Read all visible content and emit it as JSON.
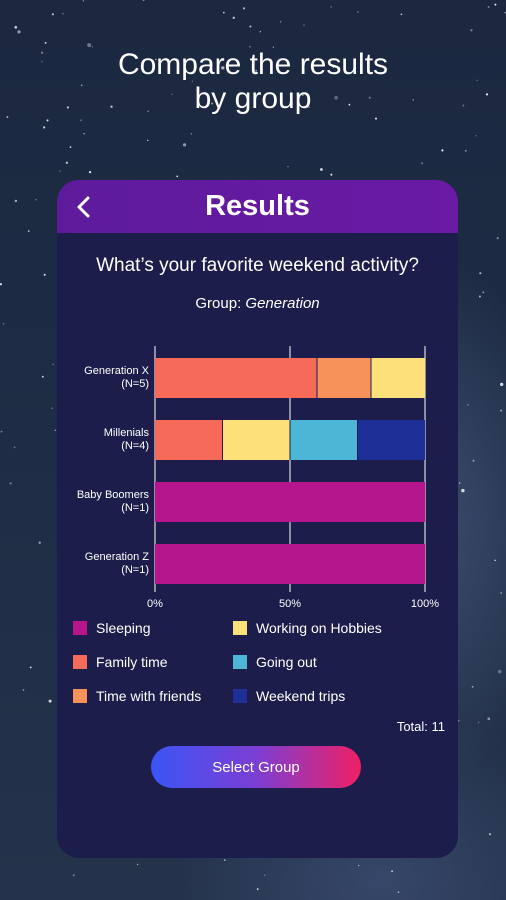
{
  "headline": {
    "line1": "Compare the results",
    "line2": "by group"
  },
  "header": {
    "title": "Results",
    "back_icon": "chevron-left-icon"
  },
  "question": "What’s your favorite weekend activity?",
  "group": {
    "prefix": "Group: ",
    "name": "Generation"
  },
  "chart_data": {
    "type": "bar",
    "orientation": "horizontal",
    "stacked": true,
    "categories": [
      {
        "name": "Generation X",
        "n": "(N=5)"
      },
      {
        "name": "Millenials",
        "n": "(N=4)"
      },
      {
        "name": "Baby Boomers",
        "n": "(N=1)"
      },
      {
        "name": "Generation Z",
        "n": "(N=1)"
      }
    ],
    "series": [
      {
        "name": "Sleeping",
        "color": "#b5168e",
        "values": [
          0,
          0,
          100,
          100
        ]
      },
      {
        "name": "Family time",
        "color": "#f66a5a",
        "values": [
          60,
          25,
          0,
          0
        ]
      },
      {
        "name": "Time with friends",
        "color": "#f7925a",
        "values": [
          20,
          0,
          0,
          0
        ]
      },
      {
        "name": "Working on Hobbies",
        "color": "#fde07a",
        "values": [
          20,
          25,
          0,
          0
        ]
      },
      {
        "name": "Going out",
        "color": "#4db6d6",
        "values": [
          0,
          25,
          0,
          0
        ]
      },
      {
        "name": "Weekend trips",
        "color": "#1f2f98",
        "values": [
          0,
          25,
          0,
          0
        ]
      }
    ],
    "xlim": [
      0,
      100
    ],
    "ticks": [
      "0%",
      "50%",
      "100%"
    ],
    "grid": true
  },
  "legend": [
    {
      "label": "Sleeping",
      "color": "#b5168e"
    },
    {
      "label": "Working on Hobbies",
      "color": "#fde07a"
    },
    {
      "label": "Family time",
      "color": "#f66a5a"
    },
    {
      "label": "Going out",
      "color": "#4db6d6"
    },
    {
      "label": "Time with friends",
      "color": "#f7925a"
    },
    {
      "label": "Weekend trips",
      "color": "#1f2f98"
    }
  ],
  "total": "Total: 11",
  "select_button": "Select Group"
}
